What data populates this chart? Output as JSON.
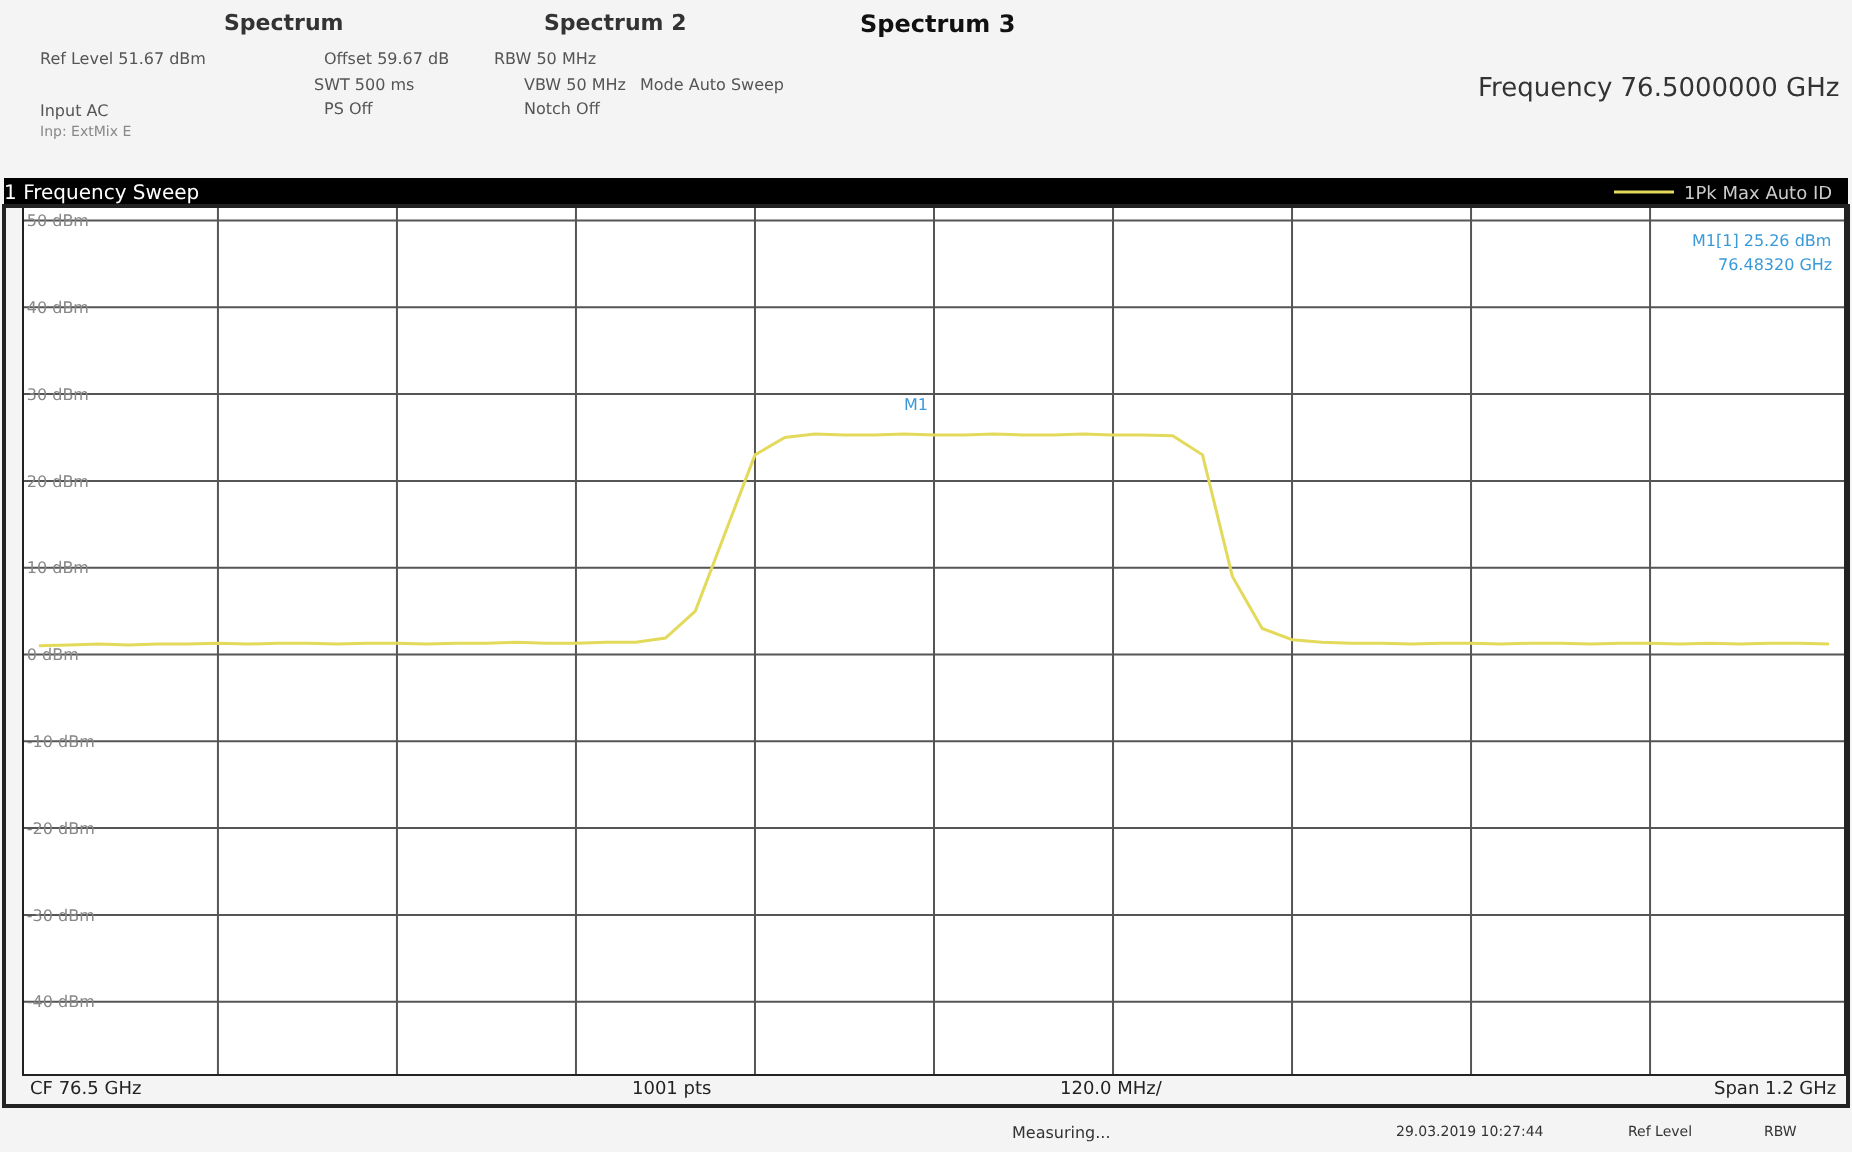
{
  "chart_data": {
    "type": "line",
    "title": "1 Frequency Sweep",
    "categories": [
      null,
      null,
      null,
      null,
      null,
      null,
      null,
      null,
      null,
      null,
      null,
      null,
      null,
      null,
      null,
      null,
      null,
      null,
      null,
      null,
      null,
      null,
      null,
      null,
      null,
      null,
      null,
      null,
      null,
      null,
      null,
      null,
      null,
      null,
      null,
      null,
      null,
      null,
      null,
      null,
      null,
      null,
      null,
      null,
      null,
      null,
      null,
      null,
      null,
      null,
      null,
      null,
      null,
      null,
      null,
      null,
      null,
      null,
      null,
      null,
      null
    ],
    "series": [
      {
        "name": "1Pk Max Auto ID",
        "color": "#e3da5c",
        "values": [
          1.0,
          1.1,
          1.2,
          1.1,
          1.2,
          1.2,
          1.3,
          1.2,
          1.3,
          1.3,
          1.2,
          1.3,
          1.3,
          1.2,
          1.3,
          1.3,
          1.4,
          1.3,
          1.3,
          1.4,
          1.4,
          1.9,
          5,
          14,
          23,
          25.0,
          25.4,
          25.3,
          25.3,
          25.4,
          25.3,
          25.3,
          25.4,
          25.3,
          25.3,
          25.4,
          25.3,
          25.3,
          25.2,
          23,
          9,
          3,
          1.7,
          1.4,
          1.3,
          1.3,
          1.2,
          1.3,
          1.3,
          1.2,
          1.3,
          1.3,
          1.2,
          1.3,
          1.3,
          1.2,
          1.3,
          1.2,
          1.3,
          1.3,
          1.2
        ]
      }
    ],
    "ylim": [
      -48.33,
      51.67
    ],
    "yticks": [
      {
        "value": 50,
        "label": "50 dBm"
      },
      {
        "value": 40,
        "label": "40 dBm"
      },
      {
        "value": 30,
        "label": "30 dBm"
      },
      {
        "value": 20,
        "label": "20 dBm"
      },
      {
        "value": 10,
        "label": "10 dBm"
      },
      {
        "value": 0,
        "label": "0 dBm"
      },
      {
        "value": -10,
        "label": "-10 dBm"
      },
      {
        "value": -20,
        "label": "-20 dBm"
      },
      {
        "value": -30,
        "label": "-30 dBm"
      },
      {
        "value": -40,
        "label": "-40 dBm"
      }
    ],
    "tick_labels": "y",
    "grid": true,
    "legend": "top right",
    "marker": "none",
    "line_style": "solid",
    "annotations": [
      "M1",
      "Spectrum",
      "Spectrum 2",
      "Spectrum 3",
      "Ref Level 51.67 dBm",
      "Offset 59.67 dB",
      "RBW 50 MHz",
      "SWT 500 ms",
      "VBW 50 MHz",
      "Mode Auto Sweep",
      "Input AC",
      "PS Off",
      "Notch Off",
      "Inp: ExtMix E",
      "Frequency 76.5000000 GHz",
      "M1[1] 25.26 dBm",
      "76.48320 GHz",
      "CF 76.5 GHz",
      "1001 pts",
      "120.0 MHz/",
      "Span 1.2 GHz",
      "Measuring...",
      "29.03.2019 10:27:44",
      "Ref Level",
      "RBW"
    ]
  }
}
